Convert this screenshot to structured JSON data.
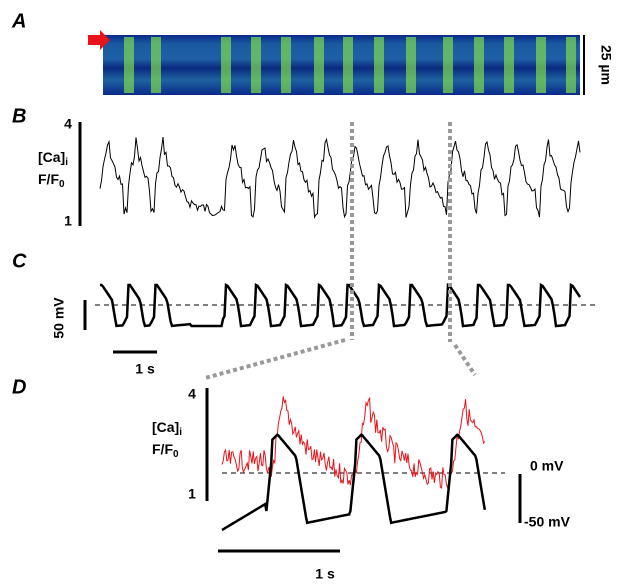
{
  "panels": [
    {
      "label": "A",
      "scale": "25 µm"
    },
    {
      "label": "B",
      "y_label": "[Ca]",
      "y_label_sub": "i",
      "y_label2": "F/F",
      "y_label2_sub": "0",
      "top": "4",
      "bottom": "1"
    },
    {
      "label": "C",
      "scale": "50 mV",
      "time": "1 s"
    },
    {
      "label": "D",
      "y_label": "[Ca]",
      "y_label_sub": "i",
      "y_label2": "F/F",
      "y_label2_sub": "0",
      "top": "4",
      "bottom": "1",
      "v_top": "0 mV",
      "v_bottom": "-50 mV",
      "time": "1 s"
    }
  ]
}
